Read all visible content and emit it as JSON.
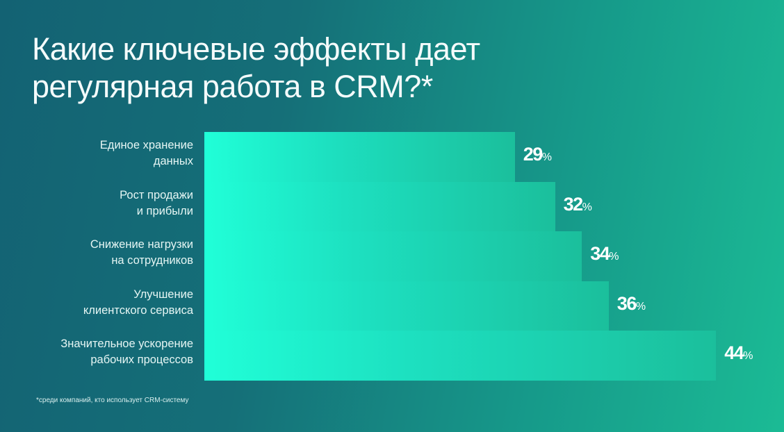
{
  "title_lines": [
    "Какие ключевые эффекты дает",
    "регулярная работа в CRM?*"
  ],
  "footnote": "*среди компаний, кто использует CRM-систему",
  "chart_data": {
    "type": "bar",
    "orientation": "horizontal",
    "title": "Какие ключевые эффекты дает регулярная работа в CRM?*",
    "categories": [
      [
        "Единое хранение",
        "данных"
      ],
      [
        "Рост продажи",
        "и прибыли"
      ],
      [
        "Снижение нагрузки",
        "на сотрудников"
      ],
      [
        "Улучшение",
        "клиентского сервиса"
      ],
      [
        "Значительное ускорение",
        "рабочих процессов"
      ]
    ],
    "values": [
      29,
      32,
      34,
      36,
      44
    ],
    "unit": "%",
    "xlabel": "",
    "ylabel": ""
  },
  "colors": {
    "bar_start": "#20ffd8",
    "bar_end": "#1bbf9c",
    "bg_start": "#136273",
    "bg_end": "#1bbb95"
  }
}
